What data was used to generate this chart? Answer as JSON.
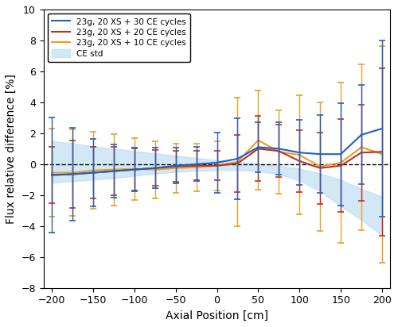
{
  "x": [
    -200,
    -175,
    -150,
    -125,
    -100,
    -75,
    -50,
    -25,
    0,
    25,
    50,
    75,
    100,
    125,
    150,
    175,
    200
  ],
  "blue_y": [
    -0.7,
    -0.65,
    -0.55,
    -0.45,
    -0.35,
    -0.25,
    -0.1,
    0.0,
    0.1,
    0.35,
    1.1,
    1.0,
    0.75,
    0.65,
    0.65,
    1.9,
    2.3
  ],
  "blue_err": [
    3.7,
    3.0,
    2.2,
    1.7,
    1.4,
    1.3,
    1.15,
    1.1,
    1.95,
    2.6,
    1.6,
    1.7,
    2.1,
    2.5,
    3.3,
    3.2,
    5.7
  ],
  "red_y": [
    -0.7,
    -0.65,
    -0.55,
    -0.45,
    -0.35,
    -0.25,
    -0.15,
    -0.1,
    -0.1,
    0.05,
    1.0,
    0.85,
    0.2,
    -0.25,
    -0.1,
    0.75,
    0.8
  ],
  "red_err": [
    1.8,
    2.2,
    1.65,
    1.55,
    1.35,
    1.15,
    1.0,
    0.95,
    0.95,
    1.85,
    2.1,
    1.7,
    2.0,
    2.3,
    3.0,
    3.1,
    5.4
  ],
  "orange_y": [
    -0.55,
    -0.55,
    -0.4,
    -0.35,
    -0.3,
    -0.35,
    -0.25,
    -0.2,
    -0.1,
    0.15,
    1.55,
    0.8,
    0.6,
    -0.15,
    0.1,
    1.1,
    0.65
  ],
  "orange_err": [
    2.85,
    2.8,
    2.5,
    2.3,
    2.0,
    1.85,
    1.6,
    1.55,
    1.6,
    4.15,
    3.2,
    2.7,
    3.85,
    4.15,
    5.2,
    5.35,
    7.0
  ],
  "shade_x": [
    -200,
    -175,
    -150,
    -125,
    -100,
    -75,
    -50,
    -25,
    0,
    25,
    50,
    75,
    100,
    125,
    150,
    175,
    200
  ],
  "shade_upper": [
    1.5,
    1.35,
    1.15,
    1.0,
    0.85,
    0.7,
    0.55,
    0.4,
    0.25,
    0.15,
    0.05,
    -0.1,
    -0.3,
    -0.6,
    -1.0,
    -1.6,
    -2.1
  ],
  "shade_lower": [
    -1.2,
    -1.1,
    -1.0,
    -0.9,
    -0.75,
    -0.62,
    -0.5,
    -0.42,
    -0.38,
    -0.38,
    -0.45,
    -0.65,
    -1.05,
    -1.75,
    -2.7,
    -3.6,
    -4.6
  ],
  "blue_color": "#2060C0",
  "red_color": "#C03020",
  "orange_color": "#E8A020",
  "shade_color": "#AED6F1",
  "ylabel": "Flux relative difference [%]",
  "xlabel": "Axial Position [cm]",
  "xlim": [
    -210,
    210
  ],
  "ylim": [
    -8,
    10
  ],
  "yticks": [
    -8,
    -6,
    -4,
    -2,
    0,
    2,
    4,
    6,
    8,
    10
  ],
  "xticks": [
    -200,
    -150,
    -100,
    -50,
    0,
    50,
    100,
    150,
    200
  ],
  "legend_labels": [
    "23g, 20 XS + 30 CE cycles",
    "23g, 20 XS + 20 CE cycles",
    "23g, 20 XS + 10 CE cycles",
    "CE std"
  ]
}
